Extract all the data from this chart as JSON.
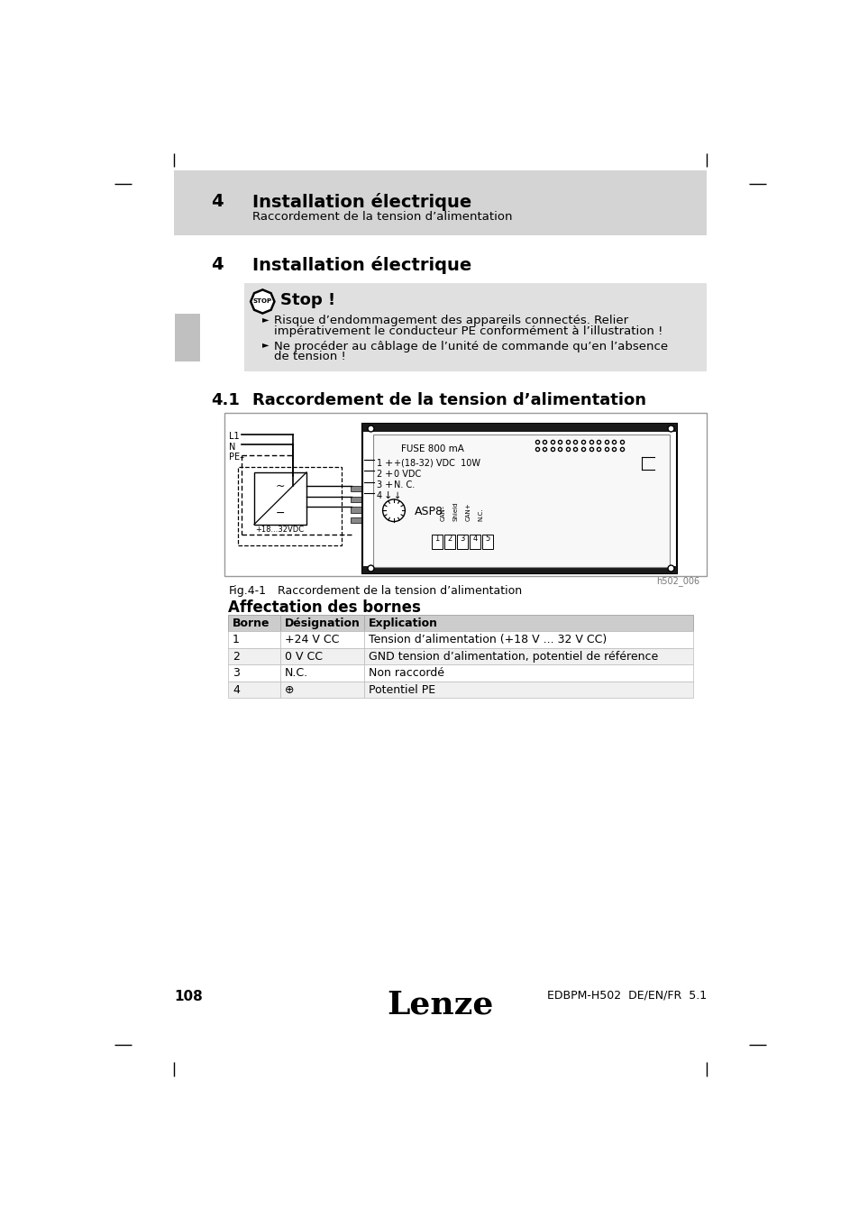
{
  "page_bg": "#ffffff",
  "header_bg": "#d4d4d4",
  "stop_box_bg": "#e0e0e0",
  "header_number": "4",
  "header_title": "Installation électrique",
  "header_subtitle": "Raccordement de la tension d’alimentation",
  "section_number": "4",
  "section_title": "Installation électrique",
  "stop_title": "Stop !",
  "stop_bullet1_line1": "Risque d’endommagement des appareils connectés. Relier",
  "stop_bullet1_line2": "impérativement le conducteur PE conformément à l’illustration !",
  "stop_bullet2_line1": "Ne procéder au câblage de l’unité de commande qu’en l’absence",
  "stop_bullet2_line2": "de tension !",
  "subsection_number": "4.1",
  "subsection_title": "Raccordement de la tension d’alimentation",
  "fig_caption_label": "Fig.4-1",
  "fig_caption_text": "Raccordement de la tension d’alimentation",
  "affectation_title": "Affectation des bornes",
  "table_headers": [
    "Borne",
    "Désignation",
    "Explication"
  ],
  "table_rows": [
    [
      "1",
      "+24 V CC",
      "Tension d’alimentation (+18 V ... 32 V CC)"
    ],
    [
      "2",
      "0 V CC",
      "GND tension d’alimentation, potentiel de référence"
    ],
    [
      "3",
      "N.C.",
      "Non raccordé"
    ],
    [
      "4",
      "⊕",
      "Potentiel PE"
    ]
  ],
  "footer_page": "108",
  "footer_brand": "Lenze",
  "footer_right": "EDBPM-H502  DE/EN/FR  5.1"
}
